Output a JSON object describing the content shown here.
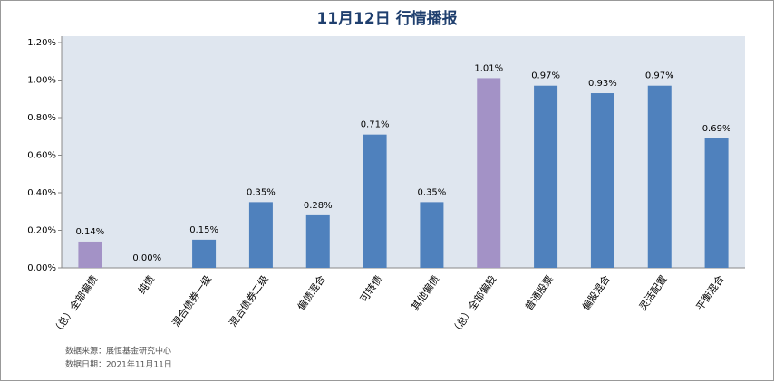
{
  "chart_data": {
    "type": "bar",
    "title": "11月12日  行情播报",
    "categories": [
      "（总）全部偏债",
      "纯债",
      "混合债券一级",
      "混合债券二级",
      "偏债混合",
      "可转债",
      "其他偏债",
      "（总）全部偏股",
      "普通股票",
      "偏股混合",
      "灵活配置",
      "平衡混合"
    ],
    "values": [
      0.14,
      0.0,
      0.15,
      0.35,
      0.28,
      0.71,
      0.35,
      1.01,
      0.97,
      0.93,
      0.97,
      0.69
    ],
    "value_labels": [
      "0.14%",
      "0.00%",
      "0.15%",
      "0.35%",
      "0.28%",
      "0.71%",
      "0.35%",
      "1.01%",
      "0.97%",
      "0.93%",
      "0.97%",
      "0.69%"
    ],
    "colors": [
      "#a392c6",
      "#4f81bd",
      "#4f81bd",
      "#4f81bd",
      "#4f81bd",
      "#4f81bd",
      "#4f81bd",
      "#a392c6",
      "#4f81bd",
      "#4f81bd",
      "#4f81bd",
      "#4f81bd"
    ],
    "ylim": [
      0,
      1.2
    ],
    "yticks": [
      {
        "value": 0,
        "label": "0.00%"
      },
      {
        "value": 0.2,
        "label": "0.20%"
      },
      {
        "value": 0.4,
        "label": "0.40%"
      },
      {
        "value": 0.6,
        "label": "0.60%"
      },
      {
        "value": 0.8,
        "label": "0.80%"
      },
      {
        "value": 1.0,
        "label": "1.00%"
      },
      {
        "value": 1.2,
        "label": "1.20%"
      }
    ],
    "grid": false,
    "notes": [
      "数据来源：展恒基金研究中心",
      "数据日期：2021年11月11日"
    ]
  }
}
